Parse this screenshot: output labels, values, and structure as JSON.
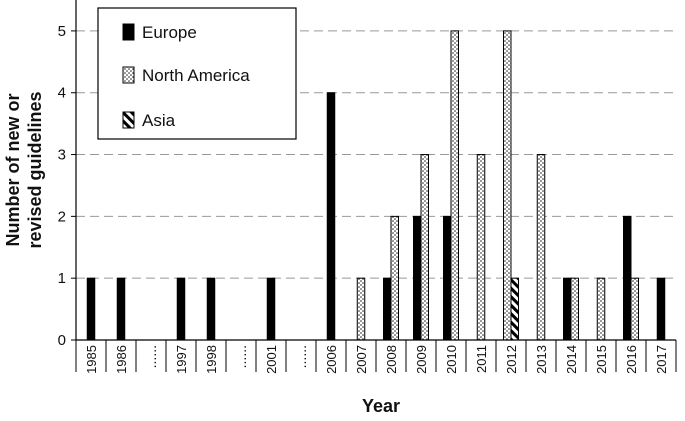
{
  "chart_data": {
    "type": "bar",
    "xlabel": "Year",
    "ylabel_lines": [
      "Number of new or",
      "revised guidelines"
    ],
    "ylim": [
      0,
      5.5
    ],
    "y_ticks": [
      0,
      1,
      2,
      3,
      4,
      5
    ],
    "grid": "horizontal dashed",
    "legend_position": "top-left",
    "categories": [
      "1985",
      "1986",
      "......",
      "1997",
      "1998",
      "......",
      "2001",
      "......",
      "2006",
      "2007",
      "2008",
      "2009",
      "2010",
      "2011",
      "2012",
      "2013",
      "2014",
      "2015",
      "2016",
      "2017"
    ],
    "series": [
      {
        "name": "Europe",
        "pattern": "solid",
        "values": [
          1,
          1,
          null,
          1,
          1,
          null,
          1,
          null,
          4,
          0,
          1,
          2,
          2,
          0,
          0,
          0,
          1,
          0,
          2,
          1
        ]
      },
      {
        "name": "North America",
        "pattern": "dotted",
        "values": [
          0,
          0,
          null,
          0,
          0,
          null,
          0,
          null,
          0,
          1,
          2,
          3,
          5,
          3,
          5,
          3,
          1,
          1,
          1,
          0
        ]
      },
      {
        "name": "Asia",
        "pattern": "hatched",
        "values": [
          0,
          0,
          null,
          0,
          0,
          null,
          0,
          null,
          0,
          0,
          0,
          0,
          0,
          0,
          1,
          0,
          0,
          0,
          0,
          0
        ]
      }
    ]
  }
}
